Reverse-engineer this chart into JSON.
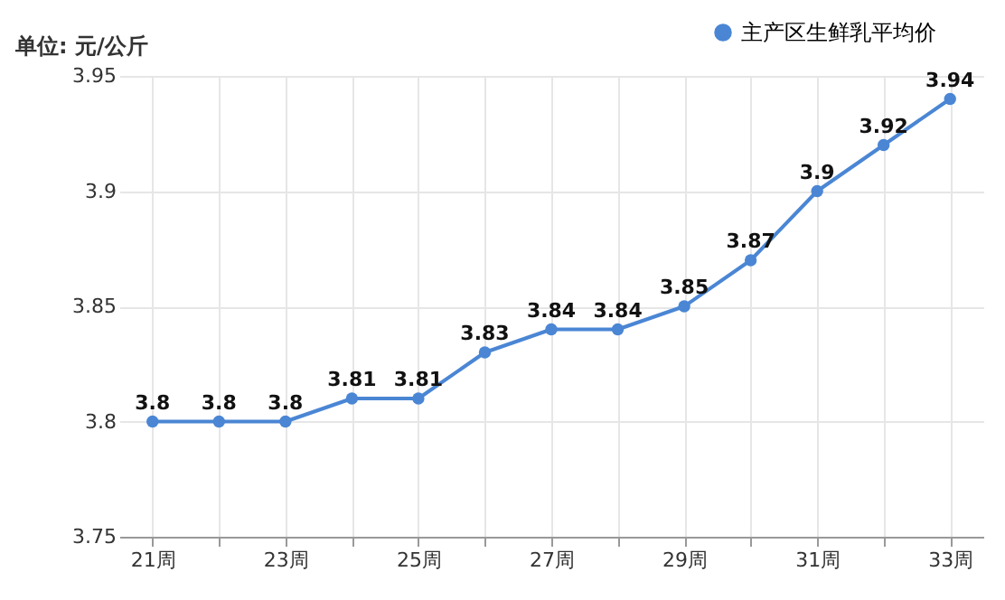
{
  "chart_data": {
    "type": "line",
    "ylabel": "单位: 元/公斤",
    "categories": [
      "21周",
      null,
      "23周",
      null,
      "25周",
      null,
      "27周",
      null,
      "29周",
      null,
      "31周",
      null,
      "33周"
    ],
    "series": [
      {
        "name": "主产区生鲜乳平均价",
        "color": "#4a86d4",
        "values": [
          3.8,
          3.8,
          3.8,
          3.81,
          3.81,
          3.83,
          3.84,
          3.84,
          3.85,
          3.87,
          3.9,
          3.92,
          3.94
        ]
      }
    ],
    "ylim": [
      3.75,
      3.95
    ],
    "yticks": [
      3.75,
      3.8,
      3.85,
      3.9,
      3.95
    ],
    "grid": true,
    "legend": "top right",
    "marker": "circle",
    "line_style": "solid",
    "data_labels": true
  }
}
